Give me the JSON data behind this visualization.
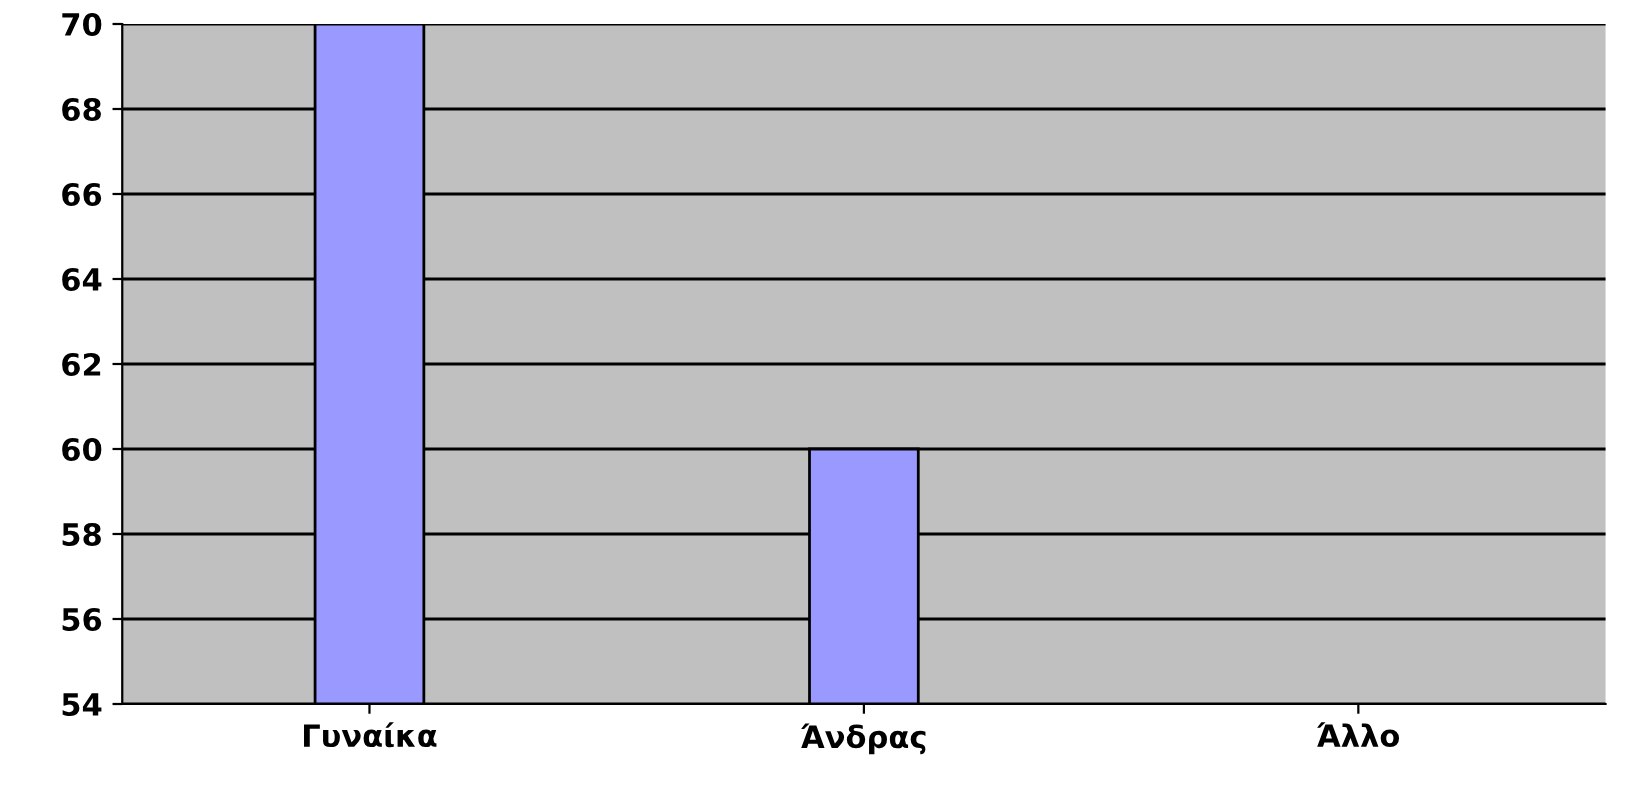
{
  "chart_data": {
    "type": "bar",
    "categories": [
      "Γυναίκα",
      "Άνδρας",
      "Άλλο"
    ],
    "series": [
      {
        "color": "#9999ff",
        "values": [
          70,
          60,
          null
        ]
      }
    ],
    "ylim": [
      54,
      70
    ],
    "yticks": [
      54,
      56,
      58,
      60,
      62,
      64,
      66,
      68,
      70
    ],
    "grid": "y",
    "legend": false
  }
}
